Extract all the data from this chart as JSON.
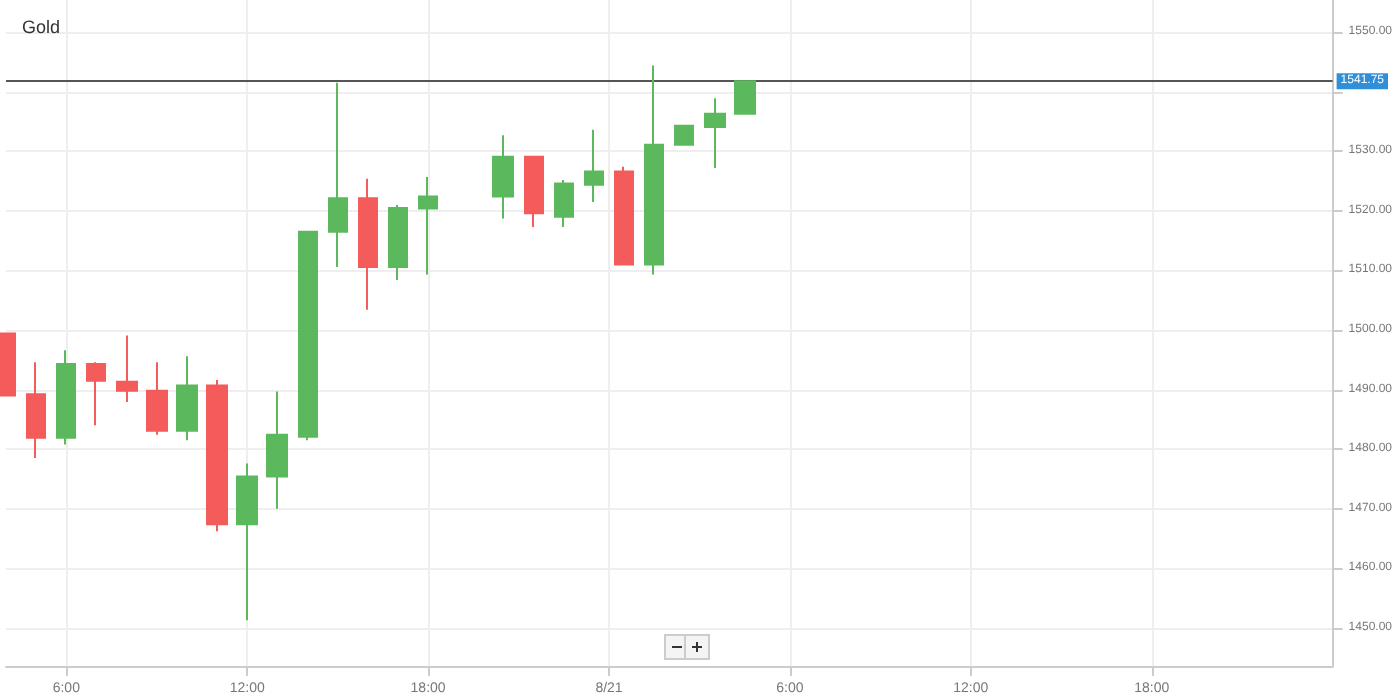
{
  "chart_data": {
    "type": "candlestick",
    "title": "Gold",
    "x": [
      "--08-20T04:00",
      "--08-20T05:00",
      "--08-20T06:00",
      "--08-20T07:00",
      "--08-20T08:00",
      "--08-20T09:00",
      "--08-20T10:00",
      "--08-20T11:00",
      "--08-20T12:00",
      "--08-20T13:00",
      "--08-20T14:00",
      "--08-20T15:00",
      "--08-20T16:00",
      "--08-20T17:00",
      "--08-20T18:00",
      "--08-20T20:30",
      "--08-20T21:30",
      "--08-20T22:30",
      "--08-20T23:30",
      "--08-21T00:30",
      "--08-21T01:30",
      "--08-21T02:30",
      "--08-21T03:30",
      "--08-21T04:30"
    ],
    "ohlc": [
      [
        1499.4,
        1499.4,
        1489.0,
        1489.0
      ],
      [
        1489.2,
        1494.6,
        1478.5,
        1481.9
      ],
      [
        1481.9,
        1496.6,
        1480.8,
        1494.3
      ],
      [
        1494.3,
        1494.6,
        1484.0,
        1491.5
      ],
      [
        1491.3,
        1499.1,
        1487.9,
        1489.8
      ],
      [
        1489.8,
        1494.6,
        1482.4,
        1483.1
      ],
      [
        1483.1,
        1495.6,
        1481.5,
        1490.7
      ],
      [
        1490.7,
        1491.6,
        1466.2,
        1467.4
      ],
      [
        1467.4,
        1477.6,
        1451.3,
        1475.4
      ],
      [
        1475.4,
        1489.7,
        1470.0,
        1482.4
      ],
      [
        1482.1,
        1516.5,
        1481.5,
        1516.5
      ],
      [
        1516.5,
        1541.5,
        1510.6,
        1522.1
      ],
      [
        1522.1,
        1525.4,
        1503.4,
        1510.6
      ],
      [
        1510.6,
        1521.0,
        1508.4,
        1520.5
      ],
      [
        1520.4,
        1525.7,
        1509.3,
        1522.4
      ],
      [
        1522.4,
        1532.7,
        1518.7,
        1529.1
      ],
      [
        1529.1,
        1529.1,
        1517.3,
        1519.6
      ],
      [
        1519.0,
        1525.2,
        1517.3,
        1524.6
      ],
      [
        1524.4,
        1533.6,
        1521.5,
        1526.6
      ],
      [
        1526.6,
        1527.4,
        1511.0,
        1511.0
      ],
      [
        1511.0,
        1544.4,
        1509.3,
        1531.1
      ],
      [
        1531.1,
        1534.3,
        1531.1,
        1534.3
      ],
      [
        1534.1,
        1538.9,
        1527.2,
        1536.3
      ],
      [
        1536.3,
        1541.75,
        1536.3,
        1541.75
      ]
    ],
    "colors": [
      "#f45b5b",
      "#f45b5b",
      "#5cb85c",
      "#f45b5b",
      "#f45b5b",
      "#f45b5b",
      "#5cb85c",
      "#f45b5b",
      "#5cb85c",
      "#5cb85c",
      "#5cb85c",
      "#5cb85c",
      "#f45b5b",
      "#5cb85c",
      "#5cb85c",
      "#5cb85c",
      "#f45b5b",
      "#5cb85c",
      "#5cb85c",
      "#f45b5b",
      "#5cb85c",
      "#5cb85c",
      "#5cb85c",
      "#5cb85c"
    ],
    "xlim": [
      "--08-20T04:00",
      "--08-22T00:00"
    ],
    "xticks": [
      {
        "value": "--08-20T06:00",
        "label": "6:00"
      },
      {
        "value": "--08-20T12:00",
        "label": "12:00"
      },
      {
        "value": "--08-20T18:00",
        "label": "18:00"
      },
      {
        "value": "--08-21T00:00",
        "label": "8/21"
      },
      {
        "value": "--08-21T06:00",
        "label": "6:00"
      },
      {
        "value": "--08-21T12:00",
        "label": "12:00"
      },
      {
        "value": "--08-21T18:00",
        "label": "18:00"
      }
    ],
    "ylim": [
      1443.6,
      1555.4
    ],
    "yticks": [
      {
        "value": 1450,
        "label": "1450.00"
      },
      {
        "value": 1460,
        "label": "1460.00"
      },
      {
        "value": 1470,
        "label": "1470.00"
      },
      {
        "value": 1480,
        "label": "1480.00"
      },
      {
        "value": 1490,
        "label": "1490.00"
      },
      {
        "value": 1500,
        "label": "1500.00"
      },
      {
        "value": 1510,
        "label": "1510.00"
      },
      {
        "value": 1520,
        "label": "1520.00"
      },
      {
        "value": 1530,
        "label": "1530.00"
      },
      {
        "value": 1540,
        "label": null
      },
      {
        "value": 1550,
        "label": "1550.00"
      }
    ],
    "ref_lines": [
      {
        "axis": "y",
        "value": 1541.75,
        "label": "1541.75",
        "color": "#555555"
      }
    ],
    "grid": true
  }
}
